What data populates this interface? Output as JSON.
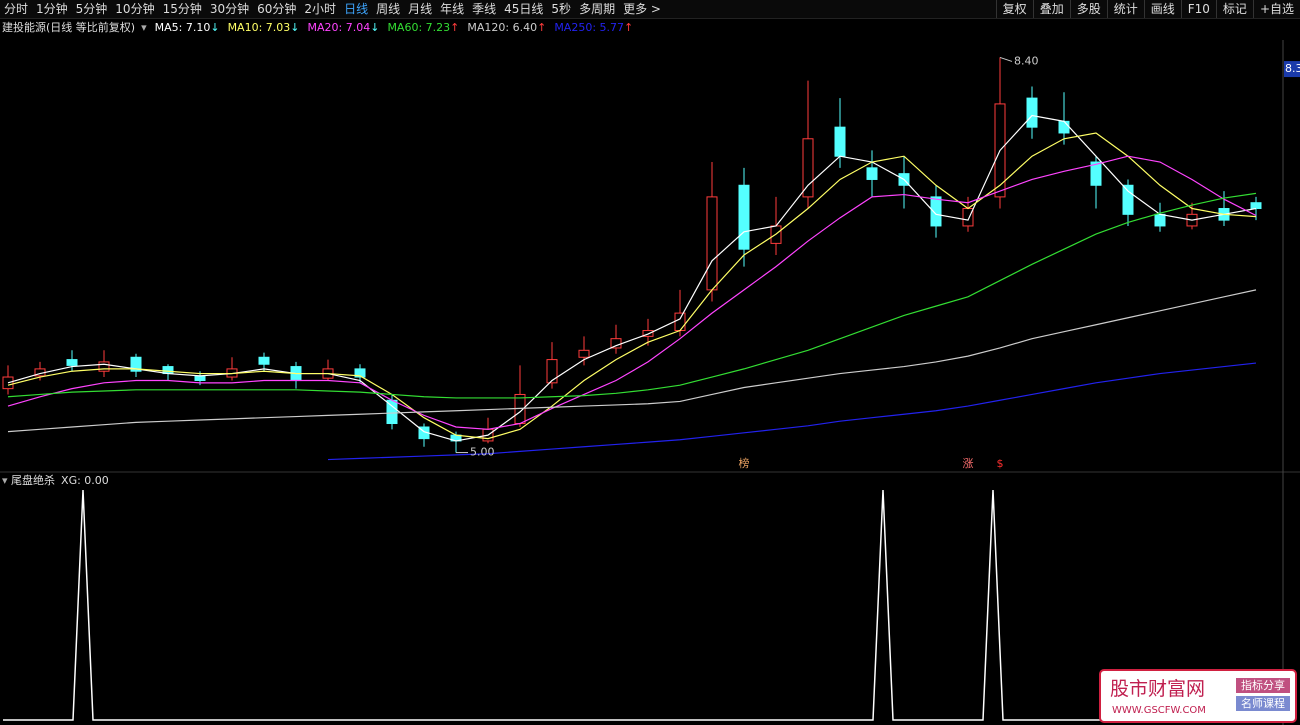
{
  "toolbar": {
    "periods": [
      "分时",
      "1分钟",
      "5分钟",
      "10分钟",
      "15分钟",
      "30分钟",
      "60分钟",
      "2小时",
      "日线",
      "周线",
      "月线",
      "年线",
      "季线",
      "45日线",
      "5秒",
      "多周期",
      "更多 >"
    ],
    "active": 8,
    "tools": [
      "复权",
      "叠加",
      "多股",
      "统计",
      "画线",
      "F10",
      "标记",
      "+自选"
    ]
  },
  "chart_data": [
    {
      "type": "candlestick",
      "title": "建投能源(日线 等比前复权)",
      "ylim": [
        4.85,
        8.55
      ],
      "yticks": [
        8.3
      ],
      "open": [
        5.55,
        5.66,
        5.8,
        5.7,
        5.82,
        5.74,
        5.66,
        5.65,
        5.82,
        5.74,
        5.64,
        5.72,
        5.45,
        5.22,
        5.15,
        5.1,
        5.25,
        5.6,
        5.82,
        5.9,
        6.0,
        6.05,
        6.4,
        7.3,
        6.8,
        7.2,
        7.8,
        7.45,
        7.4,
        7.2,
        6.95,
        7.2,
        8.05,
        7.85,
        7.5,
        7.3,
        7.05,
        6.95,
        7.1,
        7.15
      ],
      "high": [
        5.75,
        5.78,
        5.88,
        5.88,
        5.85,
        5.76,
        5.7,
        5.82,
        5.86,
        5.78,
        5.8,
        5.76,
        5.5,
        5.25,
        5.18,
        5.3,
        5.75,
        5.95,
        6.0,
        6.1,
        6.15,
        6.4,
        7.5,
        7.45,
        7.2,
        8.2,
        8.05,
        7.6,
        7.55,
        7.3,
        7.2,
        8.4,
        8.15,
        8.1,
        7.55,
        7.35,
        7.15,
        7.15,
        7.25,
        7.2
      ],
      "low": [
        5.5,
        5.62,
        5.7,
        5.65,
        5.65,
        5.62,
        5.58,
        5.62,
        5.7,
        5.55,
        5.62,
        5.6,
        5.2,
        5.05,
        5.0,
        5.08,
        5.22,
        5.55,
        5.75,
        5.85,
        5.92,
        6.0,
        6.3,
        6.6,
        6.7,
        7.1,
        7.45,
        7.2,
        7.1,
        6.85,
        6.9,
        7.1,
        7.7,
        7.65,
        7.1,
        6.95,
        6.9,
        6.92,
        6.95,
        7.0
      ],
      "close": [
        5.65,
        5.72,
        5.75,
        5.78,
        5.7,
        5.68,
        5.62,
        5.72,
        5.76,
        5.62,
        5.72,
        5.65,
        5.25,
        5.12,
        5.1,
        5.2,
        5.5,
        5.8,
        5.88,
        5.98,
        6.05,
        6.2,
        7.2,
        6.75,
        6.95,
        7.7,
        7.55,
        7.35,
        7.3,
        6.95,
        7.1,
        8.0,
        7.8,
        7.75,
        7.3,
        7.05,
        6.95,
        7.05,
        7.0,
        7.1
      ],
      "up_color": "#ff3c3c",
      "down_color": "#54ffff",
      "series": [
        {
          "label": "MA5: 7.10",
          "arrow": "↓",
          "arrow_color": "#54ffff",
          "color": "#ffffff",
          "values": [
            5.6,
            5.68,
            5.74,
            5.76,
            5.72,
            5.68,
            5.66,
            5.68,
            5.72,
            5.68,
            5.68,
            5.62,
            5.4,
            5.18,
            5.1,
            5.15,
            5.35,
            5.62,
            5.8,
            5.92,
            6.02,
            6.15,
            6.65,
            6.9,
            6.95,
            7.3,
            7.55,
            7.5,
            7.35,
            7.05,
            7.0,
            7.6,
            7.9,
            7.85,
            7.55,
            7.25,
            7.05,
            7.0,
            7.05,
            7.1
          ]
        },
        {
          "label": "MA10: 7.03",
          "arrow": "↓",
          "arrow_color": "#54ffff",
          "color": "#ffff66",
          "values": [
            5.58,
            5.65,
            5.7,
            5.72,
            5.72,
            5.7,
            5.68,
            5.68,
            5.7,
            5.68,
            5.68,
            5.66,
            5.5,
            5.3,
            5.15,
            5.12,
            5.2,
            5.4,
            5.62,
            5.8,
            5.95,
            6.05,
            6.4,
            6.7,
            6.88,
            7.1,
            7.35,
            7.5,
            7.55,
            7.3,
            7.1,
            7.3,
            7.55,
            7.7,
            7.75,
            7.55,
            7.3,
            7.1,
            7.05,
            7.03
          ]
        },
        {
          "label": "MA20: 7.04",
          "arrow": "↓",
          "arrow_color": "#54ffff",
          "color": "#ff44ff",
          "values": [
            5.4,
            5.48,
            5.55,
            5.6,
            5.62,
            5.62,
            5.6,
            5.6,
            5.62,
            5.62,
            5.62,
            5.6,
            5.45,
            5.32,
            5.22,
            5.2,
            5.25,
            5.38,
            5.5,
            5.62,
            5.78,
            5.98,
            6.2,
            6.4,
            6.6,
            6.82,
            7.02,
            7.2,
            7.22,
            7.18,
            7.15,
            7.25,
            7.35,
            7.42,
            7.48,
            7.55,
            7.5,
            7.35,
            7.18,
            7.04
          ]
        },
        {
          "label": "MA60: 7.23",
          "arrow": "↑",
          "arrow_color": "#ff3c3c",
          "color": "#33dd33",
          "values": [
            5.48,
            5.5,
            5.52,
            5.53,
            5.54,
            5.54,
            5.54,
            5.54,
            5.54,
            5.54,
            5.53,
            5.52,
            5.5,
            5.48,
            5.47,
            5.47,
            5.47,
            5.48,
            5.49,
            5.51,
            5.54,
            5.58,
            5.65,
            5.72,
            5.8,
            5.88,
            5.98,
            6.08,
            6.18,
            6.26,
            6.34,
            6.48,
            6.62,
            6.75,
            6.88,
            6.98,
            7.06,
            7.13,
            7.19,
            7.23
          ]
        },
        {
          "label": "MA120: 6.40",
          "arrow": "↑",
          "arrow_color": "#ff3c3c",
          "color": "#cccccc",
          "values": [
            5.18,
            5.2,
            5.22,
            5.24,
            5.26,
            5.27,
            5.28,
            5.29,
            5.3,
            5.31,
            5.32,
            5.33,
            5.34,
            5.35,
            5.36,
            5.37,
            5.38,
            5.39,
            5.4,
            5.41,
            5.42,
            5.44,
            5.5,
            5.56,
            5.6,
            5.64,
            5.68,
            5.71,
            5.74,
            5.78,
            5.83,
            5.9,
            5.98,
            6.04,
            6.1,
            6.16,
            6.22,
            6.28,
            6.34,
            6.4
          ]
        },
        {
          "label": "MA250: 5.77",
          "arrow": "↑",
          "arrow_color": "#ff3c3c",
          "color": "#2222ee",
          "values": [
            null,
            null,
            null,
            null,
            null,
            null,
            null,
            null,
            null,
            null,
            4.94,
            4.95,
            4.96,
            4.97,
            4.98,
            4.99,
            5.01,
            5.03,
            5.05,
            5.07,
            5.09,
            5.11,
            5.14,
            5.17,
            5.2,
            5.23,
            5.27,
            5.3,
            5.33,
            5.36,
            5.4,
            5.45,
            5.5,
            5.55,
            5.6,
            5.64,
            5.68,
            5.71,
            5.74,
            5.77
          ]
        }
      ],
      "annotations": [
        {
          "value": 8.4,
          "label": "8.40",
          "at": 31
        },
        {
          "value": 5.0,
          "label": "5.00",
          "at": 14
        }
      ],
      "markers": [
        {
          "text": "榜",
          "at": 23,
          "color": "#e8a060"
        },
        {
          "text": "涨",
          "at": 30,
          "color": "#ff7070"
        },
        {
          "text": "$",
          "at": 31,
          "color": "#ff3030"
        }
      ]
    },
    {
      "type": "line",
      "title": "尾盘绝杀",
      "label": "XG: 0.00",
      "color": "#ffffff",
      "xlim": [
        0,
        128
      ],
      "ylim": [
        0,
        1
      ],
      "x": [
        0,
        7,
        8,
        9,
        87,
        88,
        89,
        98,
        99,
        100,
        128
      ],
      "values": [
        0,
        0,
        1,
        0,
        0,
        1,
        0,
        0,
        1,
        0,
        0
      ]
    }
  ],
  "watermark": {
    "name": "股市财富网",
    "url": "WWW.GSCFW.COM",
    "tags": [
      "指标分享",
      "名师课程"
    ]
  }
}
